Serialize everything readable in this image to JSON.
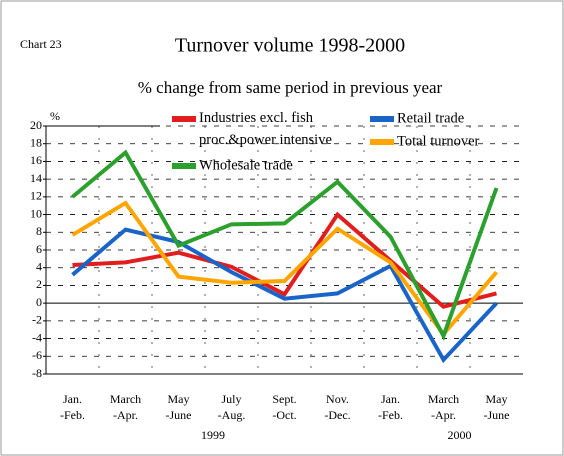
{
  "chart_data": {
    "type": "line",
    "label": "Chart 23",
    "title": "Turnover volume 1998-2000",
    "subtitle": "% change from same period in previous year",
    "y_label": "%",
    "categories": [
      "Jan.\n-Feb.",
      "March\n-Apr.",
      "May\n-June",
      "July\n-Aug.",
      "Sept.\n-Oct.",
      "Nov.\n-Dec.",
      "Jan.\n-Feb.",
      "March\n-Apr.",
      "May\n-June"
    ],
    "annotations": [
      "1999",
      "2000"
    ],
    "series": [
      {
        "name": "Industries excl. fish\nproc.&power intensive",
        "color": "#e01e1e",
        "values": [
          4.3,
          4.6,
          5.7,
          4.1,
          1.0,
          10.0,
          4.8,
          -0.4,
          1.1
        ]
      },
      {
        "name": "Retail trade",
        "color": "#1a64c8",
        "values": [
          3.2,
          8.3,
          6.9,
          3.5,
          0.5,
          1.1,
          4.2,
          -6.4,
          0.0
        ]
      },
      {
        "name": "Total turnover",
        "color": "#ffa500",
        "values": [
          7.7,
          11.3,
          3.0,
          2.3,
          2.5,
          8.4,
          4.6,
          -3.5,
          3.5
        ]
      },
      {
        "name": "Wholesale trade",
        "color": "#2ca02c",
        "values": [
          12.0,
          17.0,
          6.5,
          8.9,
          9.0,
          13.7,
          7.5,
          -3.7,
          13.0
        ]
      }
    ],
    "ylim": [
      -8,
      20
    ],
    "yticks": [
      -8,
      -6,
      -4,
      -2,
      0,
      2,
      4,
      6,
      8,
      10,
      12,
      14,
      16,
      18,
      20
    ],
    "grid": true
  }
}
